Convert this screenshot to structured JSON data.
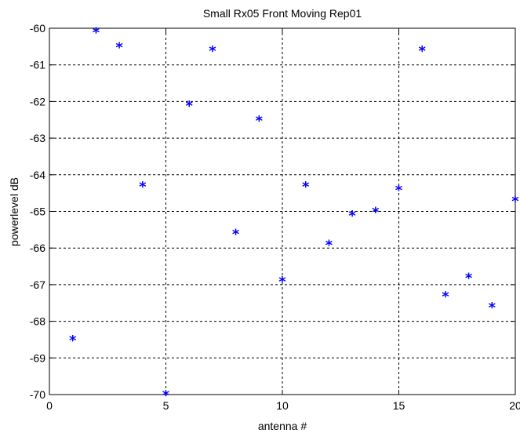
{
  "chart_data": {
    "type": "scatter",
    "title": "Small Rx05 Front Moving Rep01",
    "xlabel": "antenna #",
    "ylabel": "powerlevel dB",
    "xlim": [
      0,
      20
    ],
    "ylim": [
      -70,
      -60
    ],
    "xticks": [
      0,
      5,
      10,
      15,
      20
    ],
    "yticks": [
      -70,
      -69,
      -68,
      -67,
      -66,
      -65,
      -64,
      -63,
      -62,
      -61,
      -60
    ],
    "grid": true,
    "marker": "*",
    "marker_color": "#0000ff",
    "series": [
      {
        "x": [
          1,
          2,
          3,
          4,
          5,
          6,
          7,
          8,
          9,
          10,
          11,
          12,
          13,
          14,
          15,
          16,
          17,
          18,
          19,
          20
        ],
        "y": [
          -68.5,
          -60.1,
          -60.5,
          -64.3,
          -70.0,
          -62.1,
          -60.6,
          -65.6,
          -62.5,
          -66.9,
          -64.3,
          -65.9,
          -65.1,
          -65.0,
          -64.4,
          -60.6,
          -67.3,
          -66.8,
          -67.6,
          -64.7
        ]
      }
    ]
  }
}
